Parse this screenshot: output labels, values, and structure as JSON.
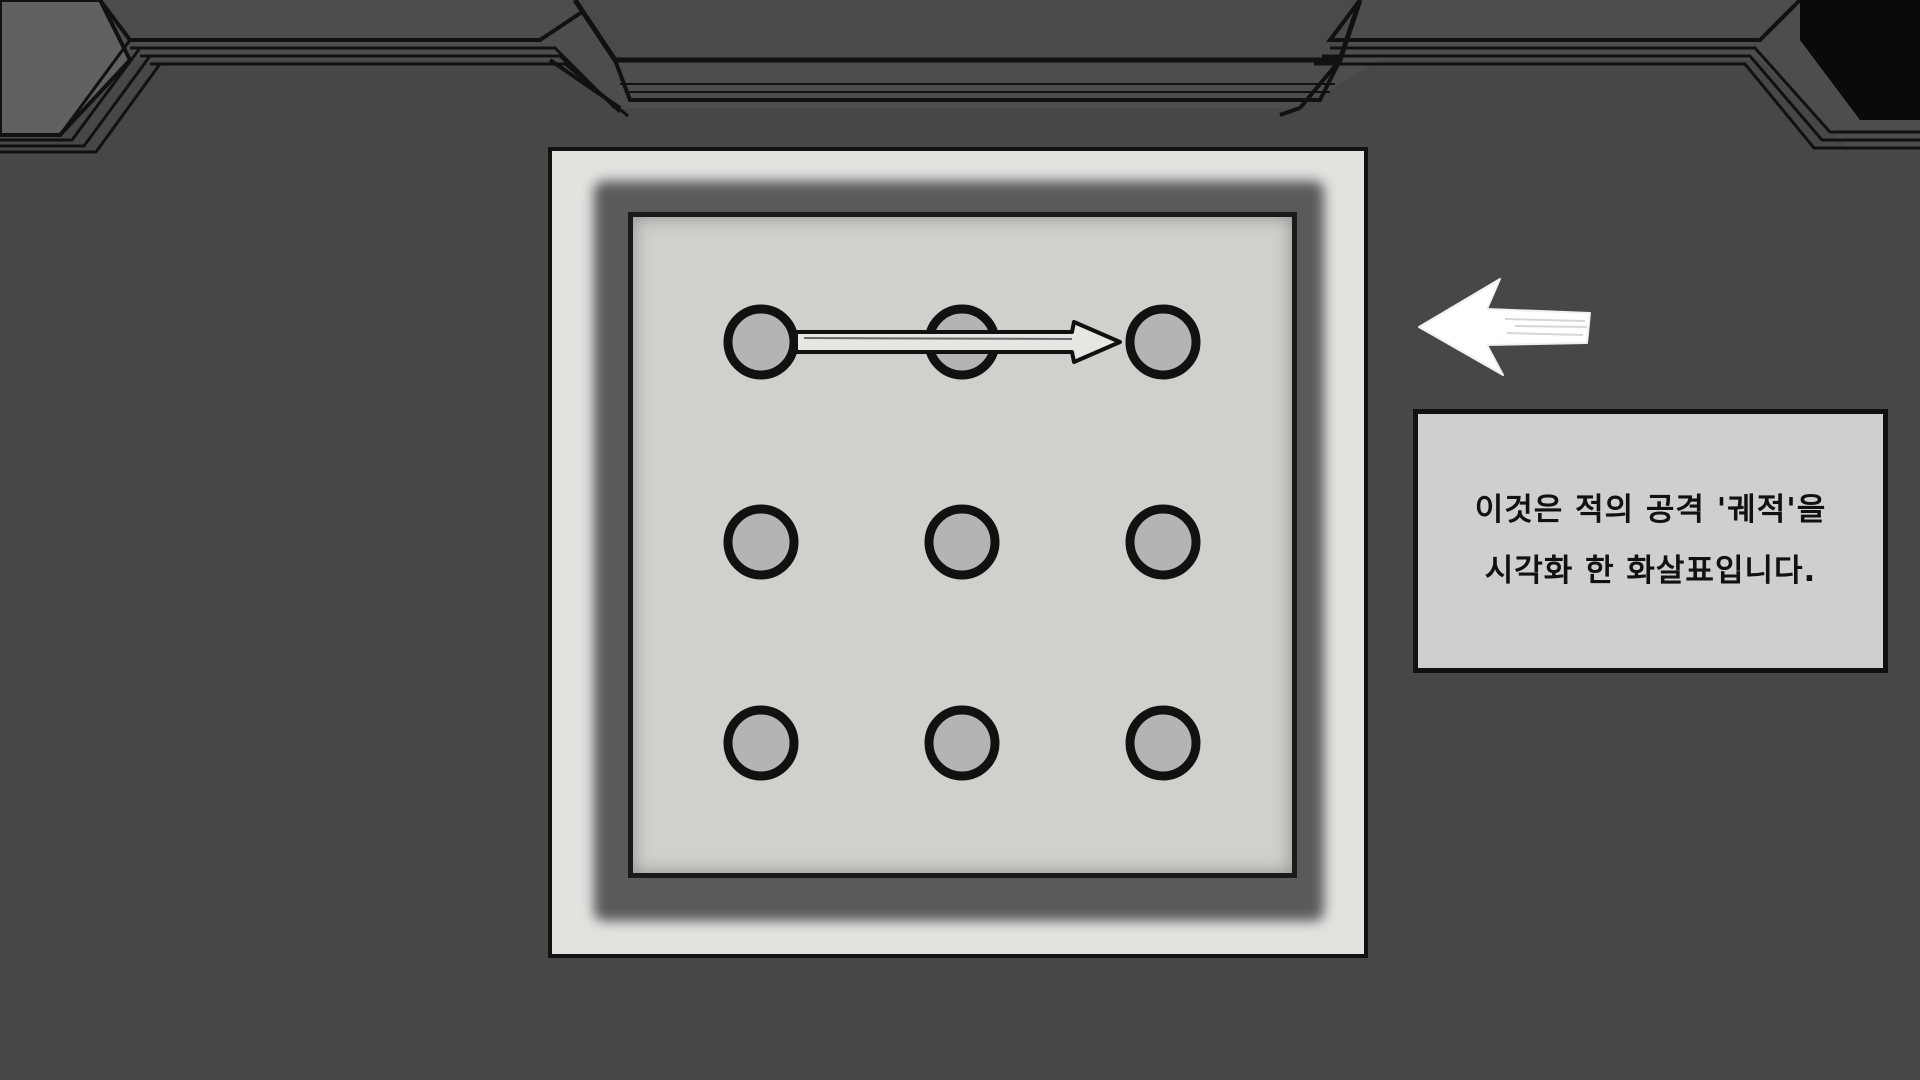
{
  "tutorial": {
    "tooltip_line1": "이것은 적의 공격 '궤적'을",
    "tooltip_line2": "시각화 한 화살표입니다."
  },
  "board": {
    "rows": 3,
    "cols": 3,
    "trajectory": {
      "from_node": [
        0,
        0
      ],
      "to_node": [
        0,
        2
      ],
      "icon": "trajectory-arrow"
    }
  },
  "pointer": {
    "icon": "arrow-left-icon",
    "direction": "left"
  },
  "colors": {
    "background": "#474747",
    "board_outer": "#e4e2df",
    "board_inner": "#d2d0cd",
    "node_fill": "#b4b4b4",
    "ink": "#111111",
    "tooltip_bg": "#cfcfcf"
  }
}
